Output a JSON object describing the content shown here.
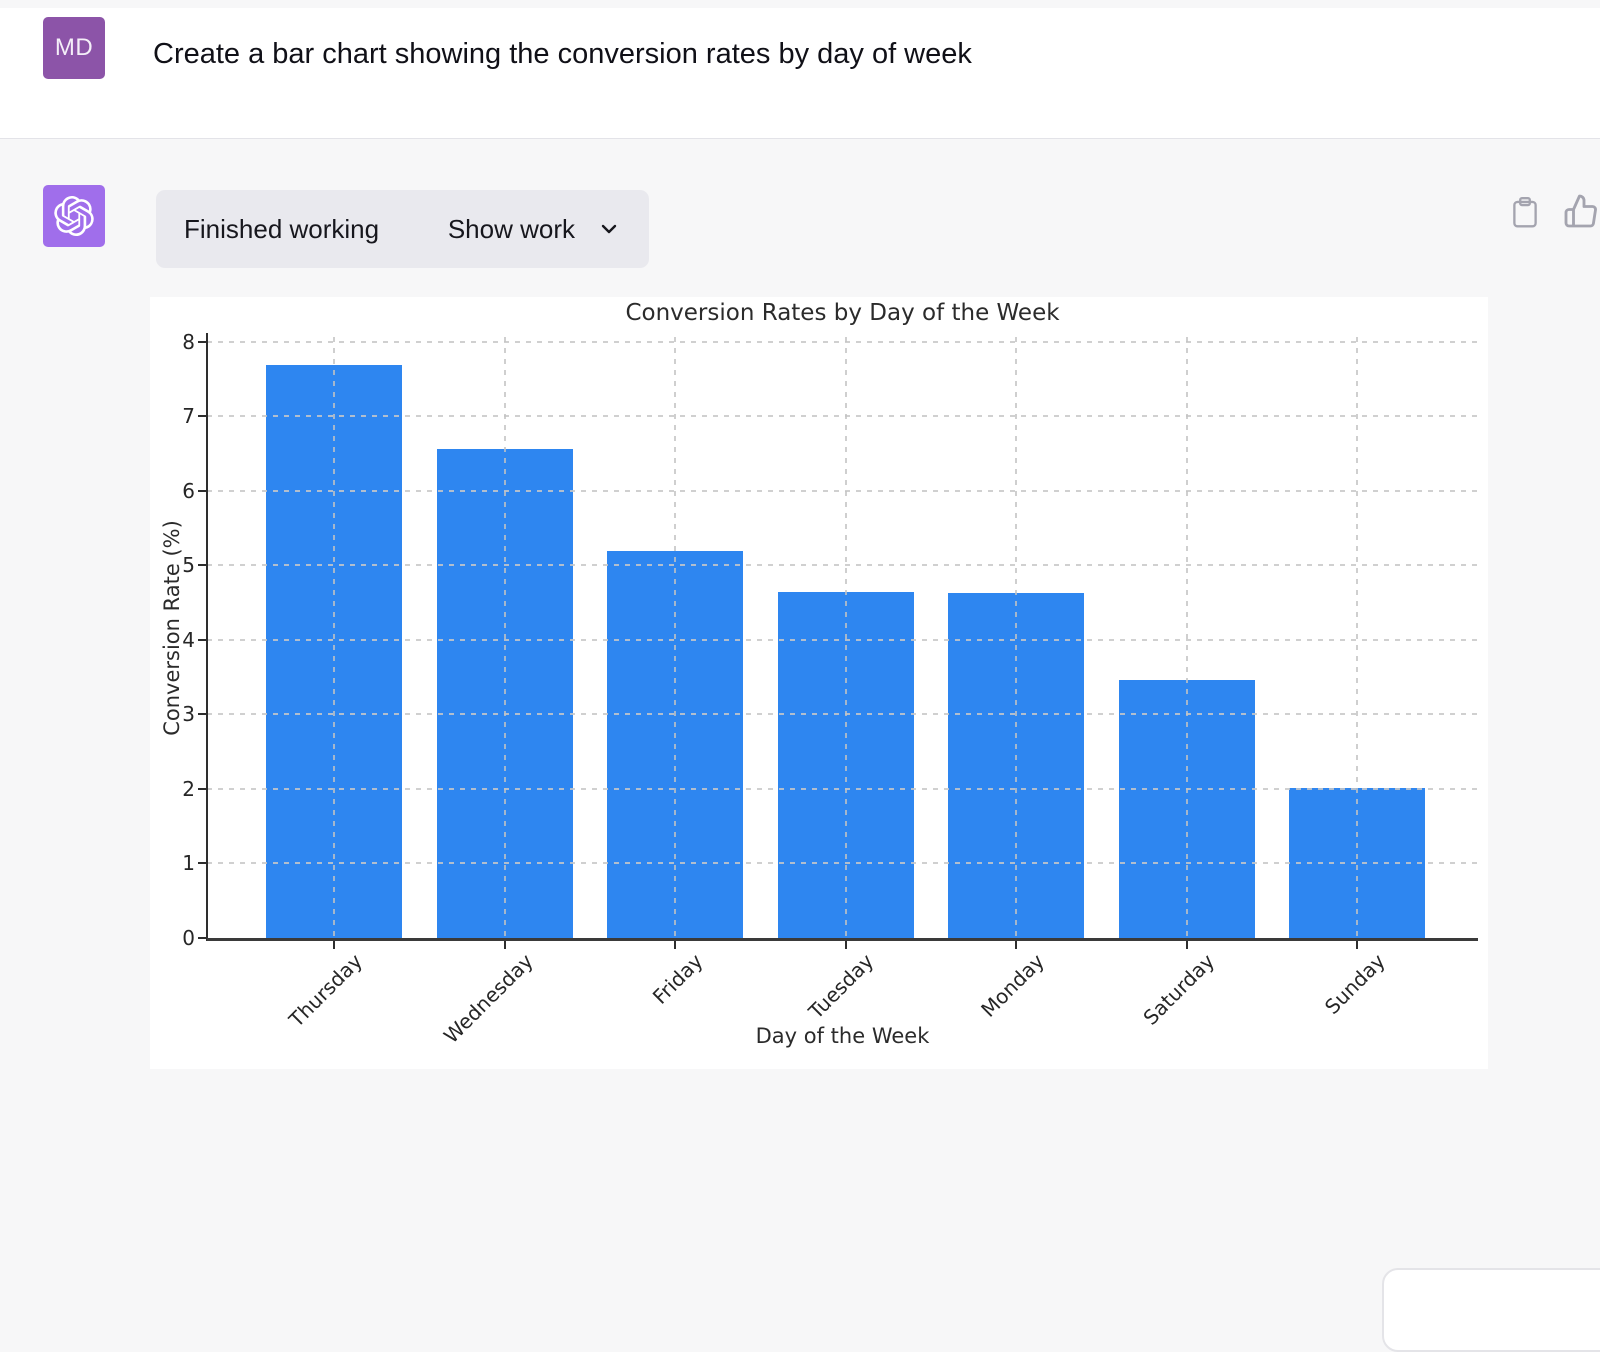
{
  "user_message": {
    "avatar_initials": "MD",
    "avatar_color": "#8c54a8",
    "text": "Create a bar chart showing the conversion rates by day of week"
  },
  "assistant": {
    "avatar_color": "#a06eeb",
    "avatar_icon": "openai-logo-icon",
    "status_label": "Finished working",
    "show_work_label": "Show work",
    "chevron_icon": "chevron-down-icon",
    "actions": [
      {
        "icon": "copy-icon"
      },
      {
        "icon": "thumbs-up-icon"
      }
    ],
    "icon_color": "#a4a4af"
  },
  "chart_data": {
    "type": "bar",
    "title": "Conversion Rates by Day of the Week",
    "xlabel": "Day of the Week",
    "ylabel": "Conversion Rate (%)",
    "categories": [
      "Thursday",
      "Wednesday",
      "Friday",
      "Tuesday",
      "Monday",
      "Saturday",
      "Sunday"
    ],
    "values": [
      7.69,
      6.56,
      5.19,
      4.64,
      4.63,
      3.46,
      2.01
    ],
    "ylim": [
      0,
      8
    ],
    "yticks": [
      0,
      1,
      2,
      3,
      4,
      5,
      6,
      7,
      8
    ],
    "bar_color": "#2e86f0",
    "grid": true,
    "grid_style": "dashed",
    "legend": "none"
  }
}
